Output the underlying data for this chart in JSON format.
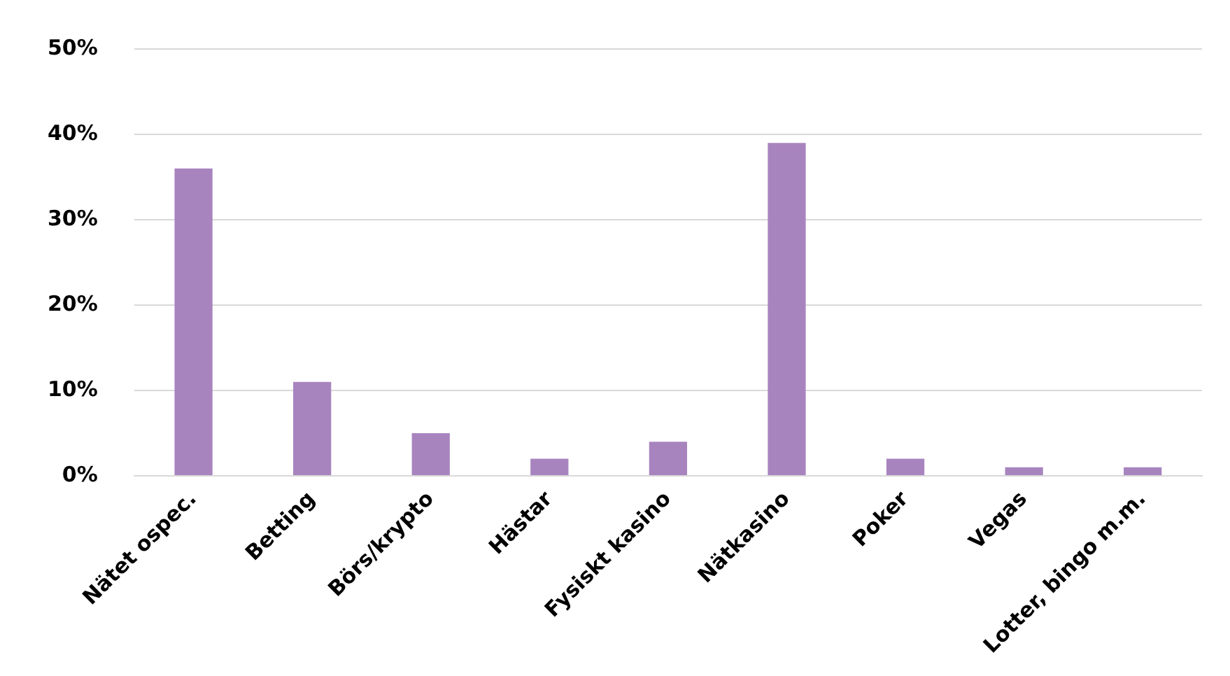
{
  "chart_data": {
    "type": "bar",
    "categories": [
      "Nätet ospec.",
      "Betting",
      "Börs/krypto",
      "Hästar",
      "Fysiskt kasino",
      "Nätkasino",
      "Poker",
      "Vegas",
      "Lotter, bingo m.m."
    ],
    "values": [
      36,
      11,
      5,
      2,
      4,
      39,
      2,
      1,
      1
    ],
    "color": "#a884bf",
    "ylim": [
      0,
      50
    ],
    "yticks": [
      {
        "value": 0,
        "label": "0%"
      },
      {
        "value": 10,
        "label": "10%"
      },
      {
        "value": 20,
        "label": "20%"
      },
      {
        "value": 30,
        "label": "30%"
      },
      {
        "value": 40,
        "label": "40%"
      },
      {
        "value": 50,
        "label": "50%"
      }
    ],
    "grid": "y",
    "legend": false
  }
}
